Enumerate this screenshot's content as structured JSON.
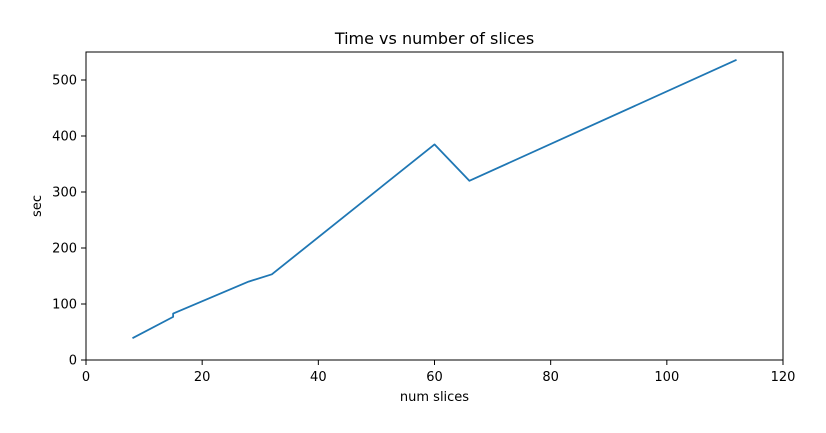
{
  "chart_data": {
    "type": "line",
    "title": "Time vs number of slices",
    "xlabel": "num slices",
    "ylabel": "sec",
    "xlim": [
      0,
      120
    ],
    "ylim": [
      0,
      550
    ],
    "xticks": [
      0,
      20,
      40,
      60,
      80,
      100,
      120
    ],
    "yticks": [
      0,
      100,
      200,
      300,
      400,
      500
    ],
    "grid": false,
    "series": [
      {
        "color": "#1f77b4",
        "x": [
          8,
          15,
          15,
          28,
          32,
          60,
          66,
          112
        ],
        "y": [
          39,
          77,
          83,
          140,
          153,
          385,
          320,
          536
        ]
      }
    ]
  }
}
